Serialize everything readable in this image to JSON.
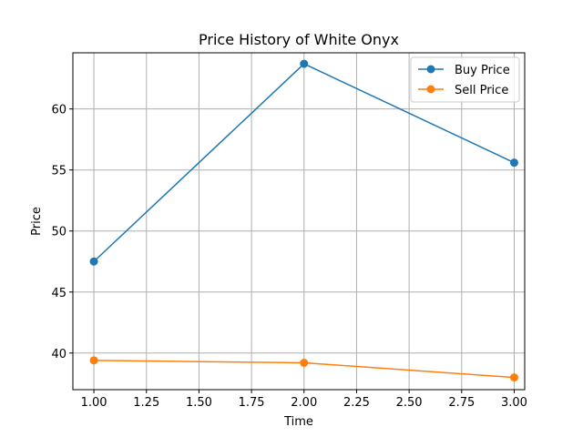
{
  "chart_data": {
    "type": "line",
    "title": "Price History of White Onyx",
    "xlabel": "Time",
    "ylabel": "Price",
    "xlim": [
      0.9,
      3.05
    ],
    "ylim": [
      37.0,
      64.6
    ],
    "xticks": [
      "1.00",
      "1.25",
      "1.50",
      "1.75",
      "2.00",
      "2.25",
      "2.50",
      "2.75",
      "3.00"
    ],
    "yticks": [
      "40",
      "45",
      "50",
      "55",
      "60"
    ],
    "grid": true,
    "legend_position": "top-right",
    "x": [
      1,
      2,
      3
    ],
    "series": [
      {
        "name": "Buy Price",
        "values": [
          47.5,
          63.7,
          55.6
        ],
        "color": "#1f77b4",
        "marker": "circle"
      },
      {
        "name": "Sell Price",
        "values": [
          39.4,
          39.2,
          38.0
        ],
        "color": "#ff7f0e",
        "marker": "circle"
      }
    ]
  }
}
